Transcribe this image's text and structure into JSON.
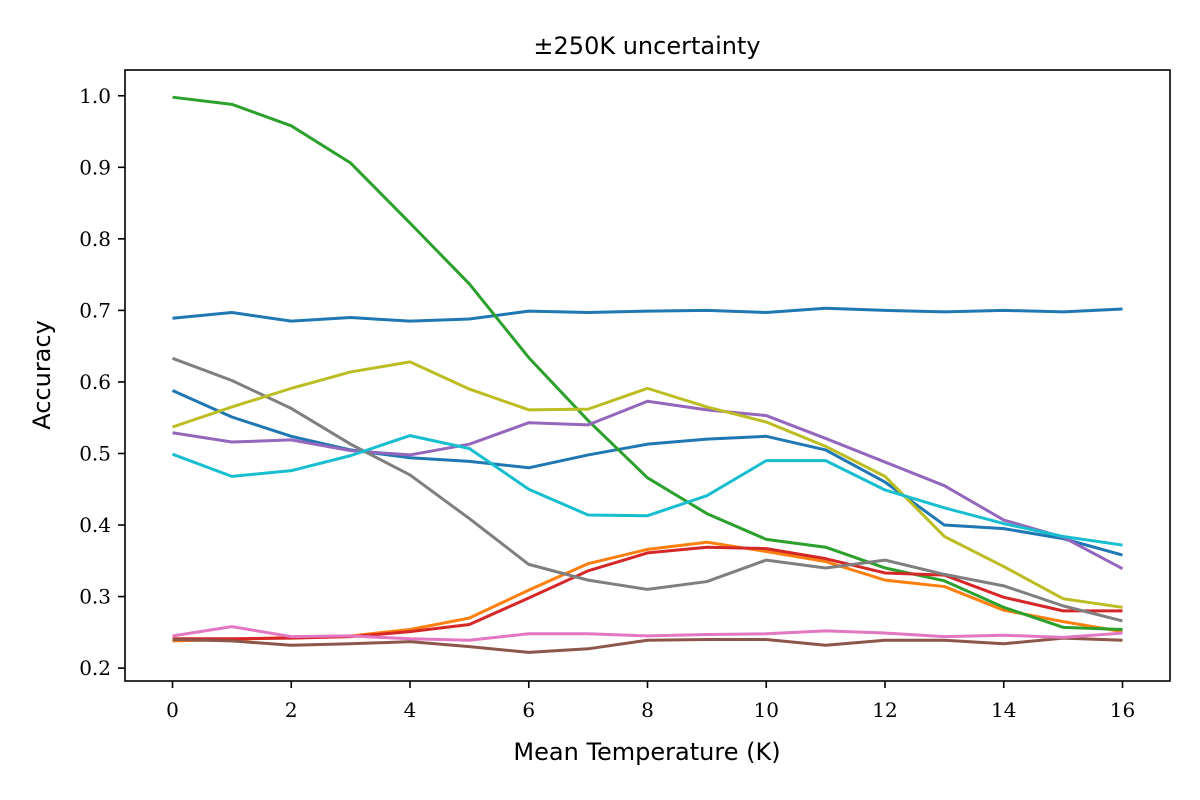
{
  "chart_data": {
    "type": "line",
    "title": "±250K uncertainty",
    "xlabel": "Mean Temperature (K)",
    "ylabel": "Accuracy",
    "xlim": [
      -0.8,
      16.8
    ],
    "ylim": [
      0.182,
      1.036
    ],
    "x": [
      0,
      1,
      2,
      3,
      4,
      5,
      6,
      7,
      8,
      9,
      10,
      11,
      12,
      13,
      14,
      15,
      16
    ],
    "x_ticks": [
      0,
      2,
      4,
      6,
      8,
      10,
      12,
      14,
      16
    ],
    "x_tick_labels": [
      "0",
      "2",
      "4",
      "6",
      "8",
      "10",
      "12",
      "14",
      "16"
    ],
    "y_ticks": [
      0.2,
      0.3,
      0.4,
      0.5,
      0.6,
      0.7,
      0.8,
      0.9,
      1.0
    ],
    "y_tick_labels": [
      "0.2",
      "0.3",
      "0.4",
      "0.5",
      "0.6",
      "0.7",
      "0.8",
      "0.9",
      "1.0"
    ],
    "grid": false,
    "legend": "none",
    "series": [
      {
        "color": "#1f77b4",
        "values": [
          0.689,
          0.697,
          0.685,
          0.69,
          0.685,
          0.688,
          0.699,
          0.697,
          0.699,
          0.7,
          0.697,
          0.703,
          0.7,
          0.698,
          0.7,
          0.698,
          0.702
        ]
      },
      {
        "color": "#1f77b4",
        "values": [
          0.588,
          0.551,
          0.524,
          0.505,
          0.494,
          0.489,
          0.48,
          0.498,
          0.513,
          0.52,
          0.524,
          0.505,
          0.46,
          0.4,
          0.395,
          0.381,
          0.358
        ]
      },
      {
        "color": "#ff7f0e",
        "values": [
          0.238,
          0.24,
          0.243,
          0.245,
          0.254,
          0.27,
          0.309,
          0.346,
          0.366,
          0.376,
          0.363,
          0.349,
          0.323,
          0.314,
          0.281,
          0.265,
          0.251
        ]
      },
      {
        "color": "#2ca02c",
        "values": [
          0.998,
          0.988,
          0.958,
          0.906,
          0.822,
          0.737,
          0.634,
          0.546,
          0.466,
          0.416,
          0.38,
          0.369,
          0.34,
          0.322,
          0.285,
          0.257,
          0.254
        ]
      },
      {
        "color": "#d62728",
        "values": [
          0.241,
          0.241,
          0.242,
          0.244,
          0.251,
          0.261,
          0.298,
          0.336,
          0.361,
          0.369,
          0.367,
          0.353,
          0.333,
          0.33,
          0.299,
          0.28,
          0.28
        ]
      },
      {
        "color": "#9467bd",
        "values": [
          0.529,
          0.516,
          0.519,
          0.504,
          0.498,
          0.513,
          0.543,
          0.54,
          0.573,
          0.561,
          0.553,
          0.521,
          0.488,
          0.455,
          0.407,
          0.383,
          0.339
        ]
      },
      {
        "color": "#8c564b",
        "values": [
          0.24,
          0.238,
          0.232,
          0.234,
          0.237,
          0.23,
          0.222,
          0.227,
          0.239,
          0.24,
          0.24,
          0.232,
          0.239,
          0.239,
          0.234,
          0.242,
          0.239
        ]
      },
      {
        "color": "#e377c2",
        "values": [
          0.245,
          0.258,
          0.244,
          0.245,
          0.241,
          0.239,
          0.248,
          0.248,
          0.245,
          0.247,
          0.248,
          0.252,
          0.249,
          0.244,
          0.246,
          0.243,
          0.249
        ]
      },
      {
        "color": "#7f7f7f",
        "values": [
          0.633,
          0.602,
          0.563,
          0.513,
          0.47,
          0.409,
          0.345,
          0.323,
          0.31,
          0.321,
          0.351,
          0.34,
          0.351,
          0.331,
          0.315,
          0.287,
          0.266
        ]
      },
      {
        "color": "#bcbd22",
        "values": [
          0.537,
          0.565,
          0.591,
          0.614,
          0.628,
          0.59,
          0.561,
          0.562,
          0.591,
          0.565,
          0.544,
          0.51,
          0.468,
          0.384,
          0.342,
          0.297,
          0.285
        ]
      },
      {
        "color": "#17becf",
        "values": [
          0.499,
          0.468,
          0.476,
          0.497,
          0.525,
          0.507,
          0.45,
          0.414,
          0.413,
          0.441,
          0.49,
          0.49,
          0.449,
          0.424,
          0.402,
          0.384,
          0.372
        ]
      }
    ]
  }
}
